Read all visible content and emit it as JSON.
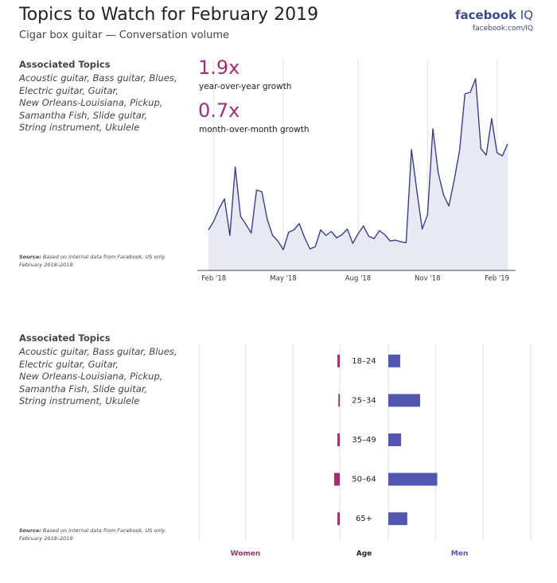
{
  "header": {
    "title": "Topics to Watch for February 2019",
    "subtitle": "Cigar box guitar — Conversation volume",
    "brand": "facebook",
    "brand_suffix": "IQ",
    "url": "facebook.com/IQ"
  },
  "panels": [
    {
      "heading": "Associated Topics",
      "topics": [
        "Acoustic guitar, Bass guitar, Blues,",
        "Electric guitar, Guitar,",
        "New Orleans-Louisiana, Pickup,",
        "Samantha Fish, Slide guitar,",
        "String instrument, Ukulele"
      ],
      "source_label": "Source:",
      "source_text": "Based on internal data from Facebook, US only.",
      "source_period": "February 2018–2019."
    },
    {
      "heading": "Associated Topics",
      "topics": [
        "Acoustic guitar, Bass guitar, Blues,",
        "Electric guitar, Guitar,",
        "New Orleans-Louisiana, Pickup,",
        "Samantha Fish, Slide guitar,",
        "String instrument, Ukulele"
      ],
      "source_label": "Source:",
      "source_text": "Based on internal data from Facebook, US only.",
      "source_period": "February 2018–2019."
    }
  ],
  "chart_data": [
    {
      "type": "line",
      "color": "#3b3f8c",
      "area_color": "#e9e9f3",
      "stats": [
        {
          "value": "1.9x",
          "label": "year-over-year growth"
        },
        {
          "value": "0.7x",
          "label": "month-over-month growth"
        }
      ],
      "x": [
        0,
        1,
        2,
        3,
        4,
        5,
        6,
        7,
        8,
        9,
        10,
        11,
        12,
        13,
        14,
        15,
        16,
        17,
        18,
        19,
        20,
        21,
        22,
        23,
        24,
        25,
        26,
        27,
        28,
        29,
        30,
        31,
        32,
        33,
        34,
        35,
        36,
        37,
        38,
        39,
        40,
        41,
        42,
        43,
        44,
        45,
        46,
        47,
        48,
        49,
        50,
        51,
        52,
        53,
        54,
        55,
        56
      ],
      "values": [
        20.4,
        24.8,
        31.2,
        36,
        17.6,
        52,
        27.2,
        23.2,
        18.8,
        40.4,
        39.6,
        25.6,
        17.6,
        14.8,
        10.4,
        19.2,
        20.4,
        23.6,
        16.4,
        10.8,
        12,
        20.4,
        17.6,
        19.6,
        16.4,
        18,
        20.8,
        13.6,
        18.4,
        22.4,
        17.2,
        16,
        20,
        18,
        14.8,
        15.2,
        14.4,
        14,
        60.8,
        40,
        20.8,
        28,
        71.2,
        49.2,
        38,
        32.4,
        45.6,
        60.4,
        88.8,
        89.6,
        96.4,
        61.2,
        58,
        76.4,
        59.2,
        57.6,
        63.6
      ],
      "xlim": [
        0,
        56
      ],
      "ylim": [
        0,
        100
      ],
      "xticks": [
        {
          "value": 1,
          "label": "Feb '18"
        },
        {
          "value": 14,
          "label": "May '18"
        },
        {
          "value": 28,
          "label": "Aug '18"
        },
        {
          "value": 41,
          "label": "Nov '18"
        },
        {
          "value": 54,
          "label": "Feb '19"
        }
      ],
      "grid": true
    },
    {
      "type": "butterfly",
      "category_label": "Age",
      "categories": [
        "18–24",
        "25–34",
        "35–49",
        "50–64",
        "65+"
      ],
      "series": [
        {
          "name": "Women",
          "color": "#9e2f72",
          "values": [
            0.5,
            0.3,
            0.5,
            1.2,
            0.5
          ]
        },
        {
          "name": "Men",
          "color": "#5256b0",
          "values": [
            2.5,
            6.7,
            2.7,
            10.3,
            4
          ]
        }
      ],
      "xlim": [
        0,
        30
      ],
      "xticks": [
        0,
        10,
        20,
        30
      ],
      "grid": true
    }
  ]
}
